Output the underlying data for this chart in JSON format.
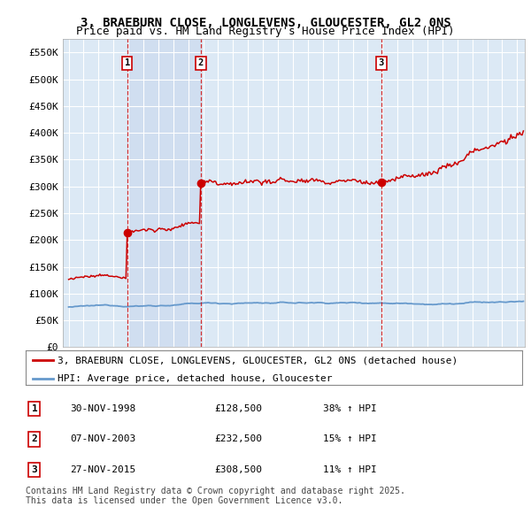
{
  "title": "3, BRAEBURN CLOSE, LONGLEVENS, GLOUCESTER, GL2 0NS",
  "subtitle": "Price paid vs. HM Land Registry's House Price Index (HPI)",
  "ylabel_ticks": [
    "£0",
    "£50K",
    "£100K",
    "£150K",
    "£200K",
    "£250K",
    "£300K",
    "£350K",
    "£400K",
    "£450K",
    "£500K",
    "£550K"
  ],
  "ytick_values": [
    0,
    50000,
    100000,
    150000,
    200000,
    250000,
    300000,
    350000,
    400000,
    450000,
    500000,
    550000
  ],
  "ylim": [
    0,
    575000
  ],
  "plot_bg_color": "#dce9f5",
  "shaded_color": "#c8d8ee",
  "sale_color": "#cc0000",
  "hpi_color": "#6699cc",
  "sale_label": "3, BRAEBURN CLOSE, LONGLEVENS, GLOUCESTER, GL2 0NS (detached house)",
  "hpi_label": "HPI: Average price, detached house, Gloucester",
  "transactions": [
    {
      "num": 1,
      "date": "30-NOV-1998",
      "price": 128500,
      "pct": "38%",
      "direction": "↑",
      "year": 1998.917
    },
    {
      "num": 2,
      "date": "07-NOV-2003",
      "price": 232500,
      "pct": "15%",
      "direction": "↑",
      "year": 2003.833
    },
    {
      "num": 3,
      "date": "27-NOV-2015",
      "price": 308500,
      "pct": "11%",
      "direction": "↑",
      "year": 2015.917
    }
  ],
  "footer": "Contains HM Land Registry data © Crown copyright and database right 2025.\nThis data is licensed under the Open Government Licence v3.0.",
  "title_fontsize": 10,
  "subtitle_fontsize": 9,
  "tick_fontsize": 8,
  "legend_fontsize": 8,
  "footer_fontsize": 7
}
